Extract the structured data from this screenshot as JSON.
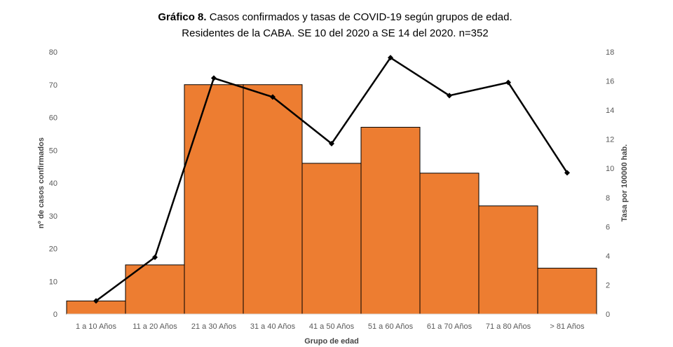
{
  "chart_data": {
    "type": "bar",
    "title_bold": "Gráfico 8.",
    "title_rest": " Casos confirmados y tasas de COVID-19 según grupos de edad.",
    "subtitle": "Residentes de la CABA. SE 10 del 2020 a SE 14 del 2020. n=352",
    "xlabel": "Grupo de edad",
    "ylabel": "nº de casos confirmados",
    "y2label": "Tasa por 100000 hab.",
    "categories": [
      "1 a 10 Años",
      "11 a 20 Años",
      "21 a 30 Años",
      "31 a 40 Años",
      "41 a 50 Años",
      "51 a 60 Años",
      "61 a 70 Años",
      "71 a 80 Años",
      "> 81 Años"
    ],
    "ylim": [
      0,
      80
    ],
    "yticks": [
      "0",
      "10",
      "20",
      "30",
      "40",
      "50",
      "60",
      "70",
      "80"
    ],
    "y2lim": [
      0,
      18
    ],
    "y2ticks": [
      "0",
      "2",
      "4",
      "6",
      "8",
      "10",
      "12",
      "14",
      "16",
      "18"
    ],
    "grid": false,
    "legend": "none",
    "series": [
      {
        "kind": "bar",
        "axis": "left",
        "color": "#ED7D31",
        "values": [
          4,
          15,
          70,
          70,
          46,
          57,
          43,
          33,
          14
        ]
      },
      {
        "kind": "line",
        "axis": "right",
        "color": "#000000",
        "values": [
          0.9,
          3.9,
          16.2,
          14.9,
          11.7,
          17.6,
          15.0,
          15.9,
          9.7
        ]
      }
    ]
  }
}
